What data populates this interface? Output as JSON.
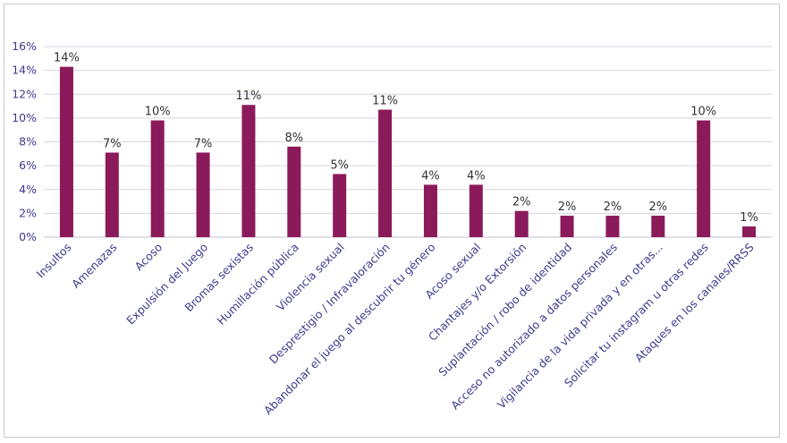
{
  "chart_data": {
    "type": "bar",
    "categories": [
      "Insultos",
      "Amenazas",
      "Acoso",
      "Expulsión del Juego",
      "Bromas sexistas",
      "Humillación pública",
      "Violencia sexual",
      "Desprestigio / Infravaloración",
      "Abandonar el juego al descubrir tu género",
      "Acoso sexual",
      "Chantajes y/o Extorsión",
      "Suplantación / robo de identidad",
      "Acceso no autorizado a datos personales",
      "Vigilancia de la vida privada y en otras...",
      "Solicitar tu instagram u otras redes",
      "Ataques en los canales/RRSS"
    ],
    "values": [
      14.3,
      7.1,
      9.8,
      7.1,
      11.1,
      7.6,
      5.3,
      10.7,
      4.4,
      4.4,
      2.2,
      1.8,
      1.8,
      1.8,
      9.8,
      0.9
    ],
    "data_labels": [
      "14%",
      "7%",
      "10%",
      "7%",
      "11%",
      "8%",
      "5%",
      "11%",
      "4%",
      "4%",
      "2%",
      "2%",
      "2%",
      "2%",
      "10%",
      "1%"
    ],
    "yticks": [
      "0%",
      "2%",
      "4%",
      "6%",
      "8%",
      "10%",
      "12%",
      "14%",
      "16%"
    ],
    "ylim": [
      0,
      16
    ],
    "title": "",
    "xlabel": "",
    "ylabel": "",
    "grid": true,
    "bar_color": "#8b1a5a"
  }
}
